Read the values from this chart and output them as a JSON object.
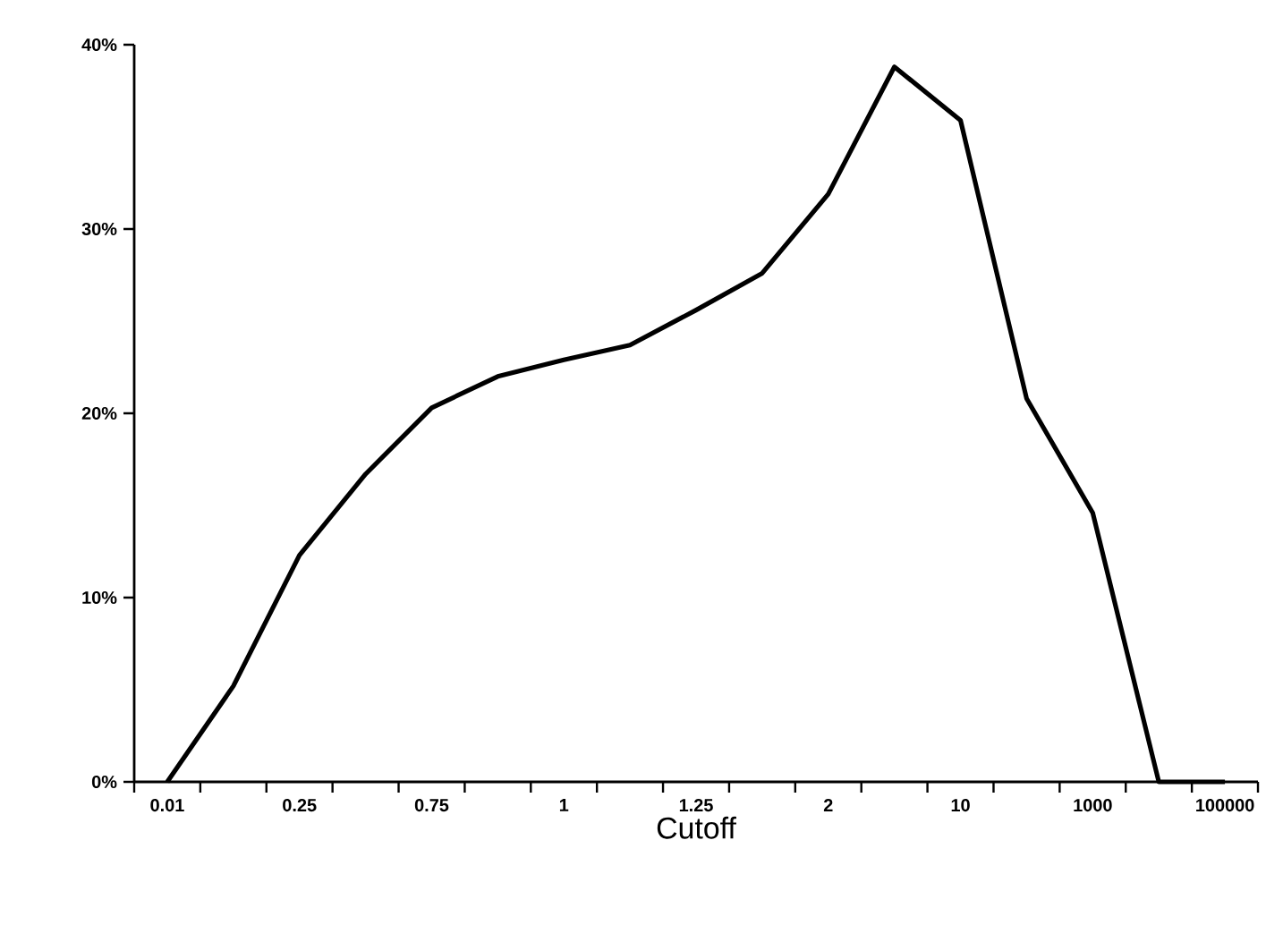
{
  "chart_data": {
    "type": "line",
    "xlabel": "Cutoff",
    "categories": [
      "0.01",
      null,
      "0.25",
      null,
      "0.75",
      null,
      "1",
      null,
      "1.25",
      null,
      "2",
      null,
      "10",
      null,
      "1000",
      null,
      "100000"
    ],
    "series": [
      {
        "color": "#000000",
        "values": [
          0,
          5.2,
          12.3,
          16.7,
          20.3,
          22.0,
          22.9,
          23.7,
          25.6,
          27.6,
          31.9,
          38.8,
          35.9,
          20.8,
          14.6,
          0,
          0
        ]
      }
    ],
    "ylim": [
      0,
      40
    ],
    "yticks": [
      {
        "value": 0,
        "label": "0%"
      },
      {
        "value": 10,
        "label": "10%"
      },
      {
        "value": 20,
        "label": "20%"
      },
      {
        "value": 30,
        "label": "30%"
      },
      {
        "value": 40,
        "label": "40%"
      }
    ],
    "grid": false,
    "marker": "none",
    "line_style": "solid"
  }
}
